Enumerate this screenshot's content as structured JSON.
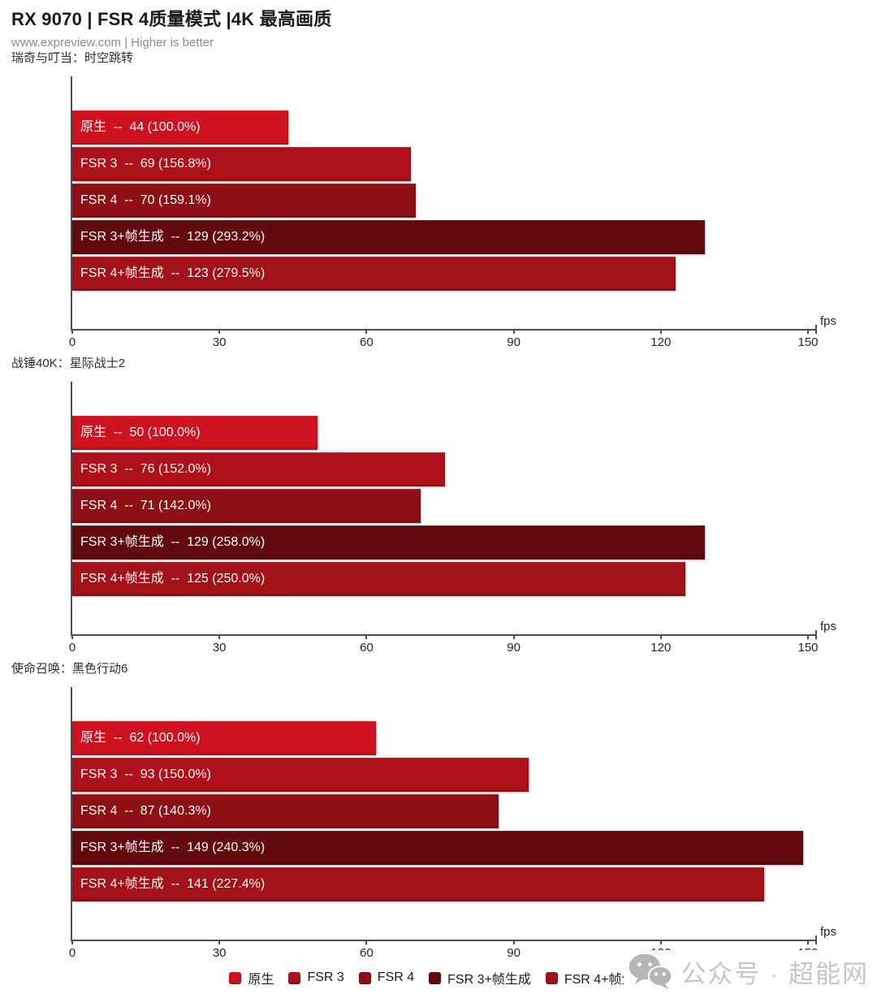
{
  "header": {
    "title": "RX 9070 | FSR 4质量模式 |4K 最高画质",
    "subtitle": "www.expreview.com | Higher is better"
  },
  "axis": {
    "max": 150,
    "ticks": [
      0,
      30,
      60,
      90,
      120,
      150
    ],
    "unit": "fps"
  },
  "legend": {
    "items": [
      {
        "label": "原生",
        "color": "#ce1220"
      },
      {
        "label": "FSR 3",
        "color": "#ae1119"
      },
      {
        "label": "FSR 4",
        "color": "#8e0f14"
      },
      {
        "label": "FSR 3+帧生成",
        "color": "#620a0e"
      },
      {
        "label": "FSR 4+帧生成",
        "color": "#a31119"
      }
    ]
  },
  "watermark": {
    "icon": "wechat-icon",
    "text": "公众号 · 超能网"
  },
  "chart_data": {
    "type": "bar",
    "orientation": "horizontal",
    "title": "RX 9070 | FSR 4质量模式 |4K 最高画质",
    "higher_is_better": true,
    "xlim": [
      0,
      150
    ],
    "x_ticks": [
      0,
      30,
      60,
      90,
      120,
      150
    ],
    "x_unit": "fps",
    "series": [
      "原生",
      "FSR 3",
      "FSR 4",
      "FSR 3+帧生成",
      "FSR 4+帧生成"
    ],
    "charts": [
      {
        "game": "瑞奇与叮当：时空跳转",
        "bars": [
          {
            "label": "原生",
            "value": 44,
            "percent": "100.0%",
            "text": "原生  --  44 (100.0%)"
          },
          {
            "label": "FSR 3",
            "value": 69,
            "percent": "156.8%",
            "text": "FSR 3  --  69 (156.8%)"
          },
          {
            "label": "FSR 4",
            "value": 70,
            "percent": "159.1%",
            "text": "FSR 4  --  70 (159.1%)"
          },
          {
            "label": "FSR 3+帧生成",
            "value": 129,
            "percent": "293.2%",
            "text": "FSR 3+帧生成  --  129 (293.2%)"
          },
          {
            "label": "FSR 4+帧生成",
            "value": 123,
            "percent": "279.5%",
            "text": "FSR 4+帧生成  --  123 (279.5%)"
          }
        ]
      },
      {
        "game": "战锤40K：星际战士2",
        "bars": [
          {
            "label": "原生",
            "value": 50,
            "percent": "100.0%",
            "text": "原生  --  50 (100.0%)"
          },
          {
            "label": "FSR 3",
            "value": 76,
            "percent": "152.0%",
            "text": "FSR 3  --  76 (152.0%)"
          },
          {
            "label": "FSR 4",
            "value": 71,
            "percent": "142.0%",
            "text": "FSR 4  --  71 (142.0%)"
          },
          {
            "label": "FSR 3+帧生成",
            "value": 129,
            "percent": "258.0%",
            "text": "FSR 3+帧生成  --  129 (258.0%)"
          },
          {
            "label": "FSR 4+帧生成",
            "value": 125,
            "percent": "250.0%",
            "text": "FSR 4+帧生成  --  125 (250.0%)"
          }
        ]
      },
      {
        "game": "使命召唤：黑色行动6",
        "bars": [
          {
            "label": "原生",
            "value": 62,
            "percent": "100.0%",
            "text": "原生  --  62 (100.0%)"
          },
          {
            "label": "FSR 3",
            "value": 93,
            "percent": "150.0%",
            "text": "FSR 3  --  93 (150.0%)"
          },
          {
            "label": "FSR 4",
            "value": 87,
            "percent": "140.3%",
            "text": "FSR 4  --  87 (140.3%)"
          },
          {
            "label": "FSR 3+帧生成",
            "value": 149,
            "percent": "240.3%",
            "text": "FSR 3+帧生成  --  149 (240.3%)"
          },
          {
            "label": "FSR 4+帧生成",
            "value": 141,
            "percent": "227.4%",
            "text": "FSR 4+帧生成  --  141 (227.4%)"
          }
        ]
      }
    ]
  }
}
